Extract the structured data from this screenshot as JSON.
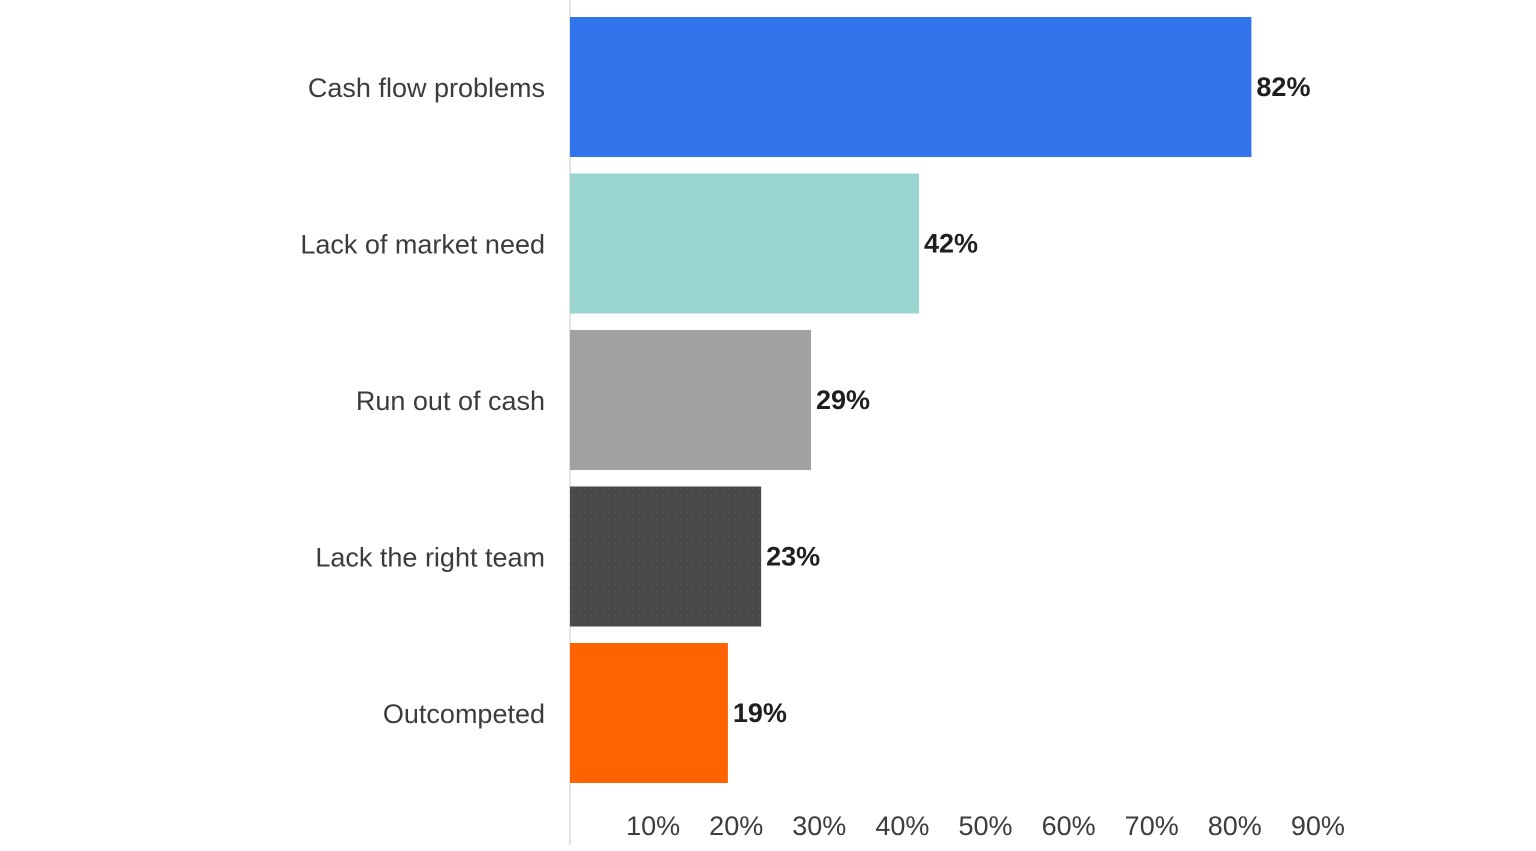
{
  "chart_data": {
    "type": "bar",
    "orientation": "horizontal",
    "categories": [
      "Cash flow problems",
      "Lack of market need",
      "Run out of cash",
      "Lack the right team",
      "Outcompeted"
    ],
    "values": [
      82,
      42,
      29,
      23,
      19
    ],
    "value_labels": [
      "82%",
      "42%",
      "29%",
      "23%",
      "19%"
    ],
    "bar_colors": [
      "#3174ec",
      "#99d4ce",
      "#a0a0a0",
      "#484848",
      "#ff6200"
    ],
    "xticks": [
      "10%",
      "20%",
      "30%",
      "40%",
      "50%",
      "60%",
      "70%",
      "80%",
      "90%"
    ],
    "xtick_values": [
      10,
      20,
      30,
      40,
      50,
      60,
      70,
      80,
      90
    ],
    "xlim": [
      0,
      90
    ],
    "grid": false,
    "legend": "none"
  }
}
